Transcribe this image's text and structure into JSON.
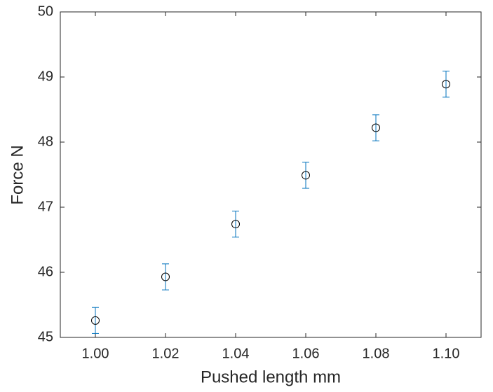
{
  "chart_data": {
    "type": "errorbar",
    "xlabel": "Pushed length mm",
    "ylabel": "Force N",
    "x": [
      1.0,
      1.02,
      1.04,
      1.06,
      1.08,
      1.1
    ],
    "values": [
      45.26,
      45.93,
      46.74,
      47.49,
      48.22,
      48.89
    ],
    "errors": [
      0.2,
      0.2,
      0.2,
      0.2,
      0.2,
      0.2
    ],
    "color": "#0072BD",
    "marker_color": "#000000",
    "xlim": [
      0.99,
      1.11
    ],
    "xticks": [
      {
        "value": 1.0,
        "label": "1.00"
      },
      {
        "value": 1.02,
        "label": "1.02"
      },
      {
        "value": 1.04,
        "label": "1.04"
      },
      {
        "value": 1.06,
        "label": "1.06"
      },
      {
        "value": 1.08,
        "label": "1.08"
      },
      {
        "value": 1.1,
        "label": "1.10"
      }
    ],
    "ylim": [
      45,
      50
    ],
    "yticks": [
      45,
      46,
      47,
      48,
      49,
      50
    ]
  }
}
